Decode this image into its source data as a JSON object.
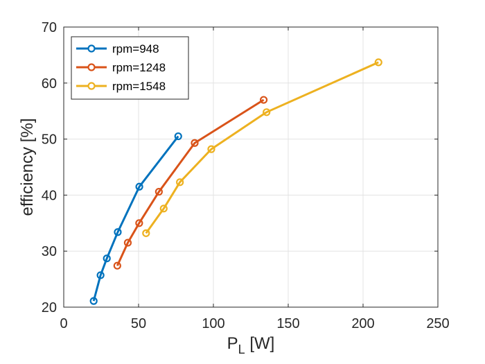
{
  "chart_data": {
    "type": "line",
    "title": "",
    "xlabel": {
      "main": "P",
      "subscript": "L",
      "unit": " [W]"
    },
    "ylabel": "efficiency [%]",
    "xlim": [
      0,
      250
    ],
    "ylim": [
      20,
      70
    ],
    "xticks": [
      0,
      50,
      100,
      150,
      200,
      250
    ],
    "yticks": [
      20,
      30,
      40,
      50,
      60,
      70
    ],
    "grid": true,
    "legend_position": "top-left",
    "marker": "circle",
    "series": [
      {
        "name": "rpm=948",
        "color": "#0072BD",
        "points": [
          [
            20,
            21.1
          ],
          [
            24.6,
            25.7
          ],
          [
            28.8,
            28.7
          ],
          [
            36.1,
            33.4
          ],
          [
            50.5,
            41.5
          ],
          [
            76.5,
            50.5
          ]
        ]
      },
      {
        "name": "rpm=1248",
        "color": "#D95319",
        "points": [
          [
            35.8,
            27.4
          ],
          [
            42.8,
            31.5
          ],
          [
            50.4,
            35.0
          ],
          [
            63.6,
            40.6
          ],
          [
            87.5,
            49.3
          ],
          [
            133.6,
            57.0
          ]
        ]
      },
      {
        "name": "rpm=1548",
        "color": "#EDB120",
        "points": [
          [
            55,
            33.2
          ],
          [
            66.8,
            37.6
          ],
          [
            77.6,
            42.3
          ],
          [
            98.6,
            48.2
          ],
          [
            135.5,
            54.8
          ],
          [
            210.3,
            63.7
          ]
        ]
      }
    ]
  }
}
